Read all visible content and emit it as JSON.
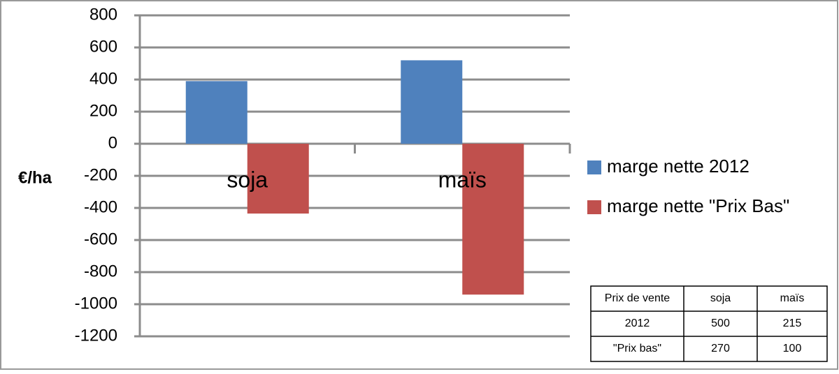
{
  "chart_data": {
    "type": "bar",
    "y_label": "€/ha",
    "categories": [
      "soja",
      "maïs"
    ],
    "series": [
      {
        "name": "marge nette 2012",
        "color": "#4f81bd",
        "values": [
          390,
          520
        ]
      },
      {
        "name": "marge nette \"Prix Bas\"",
        "color": "#c0504d",
        "values": [
          -435,
          -940
        ]
      }
    ],
    "ylim": [
      -1200,
      800
    ],
    "yticks": [
      800,
      600,
      400,
      200,
      0,
      -200,
      -400,
      -600,
      -800,
      -1000,
      -1200
    ],
    "grid": true,
    "legend": "right",
    "table": {
      "rows": [
        [
          "Prix de vente",
          "soja",
          "maïs"
        ],
        [
          "2012",
          "500",
          "215"
        ],
        [
          "\"Prix bas\"",
          "270",
          "100"
        ]
      ]
    }
  }
}
